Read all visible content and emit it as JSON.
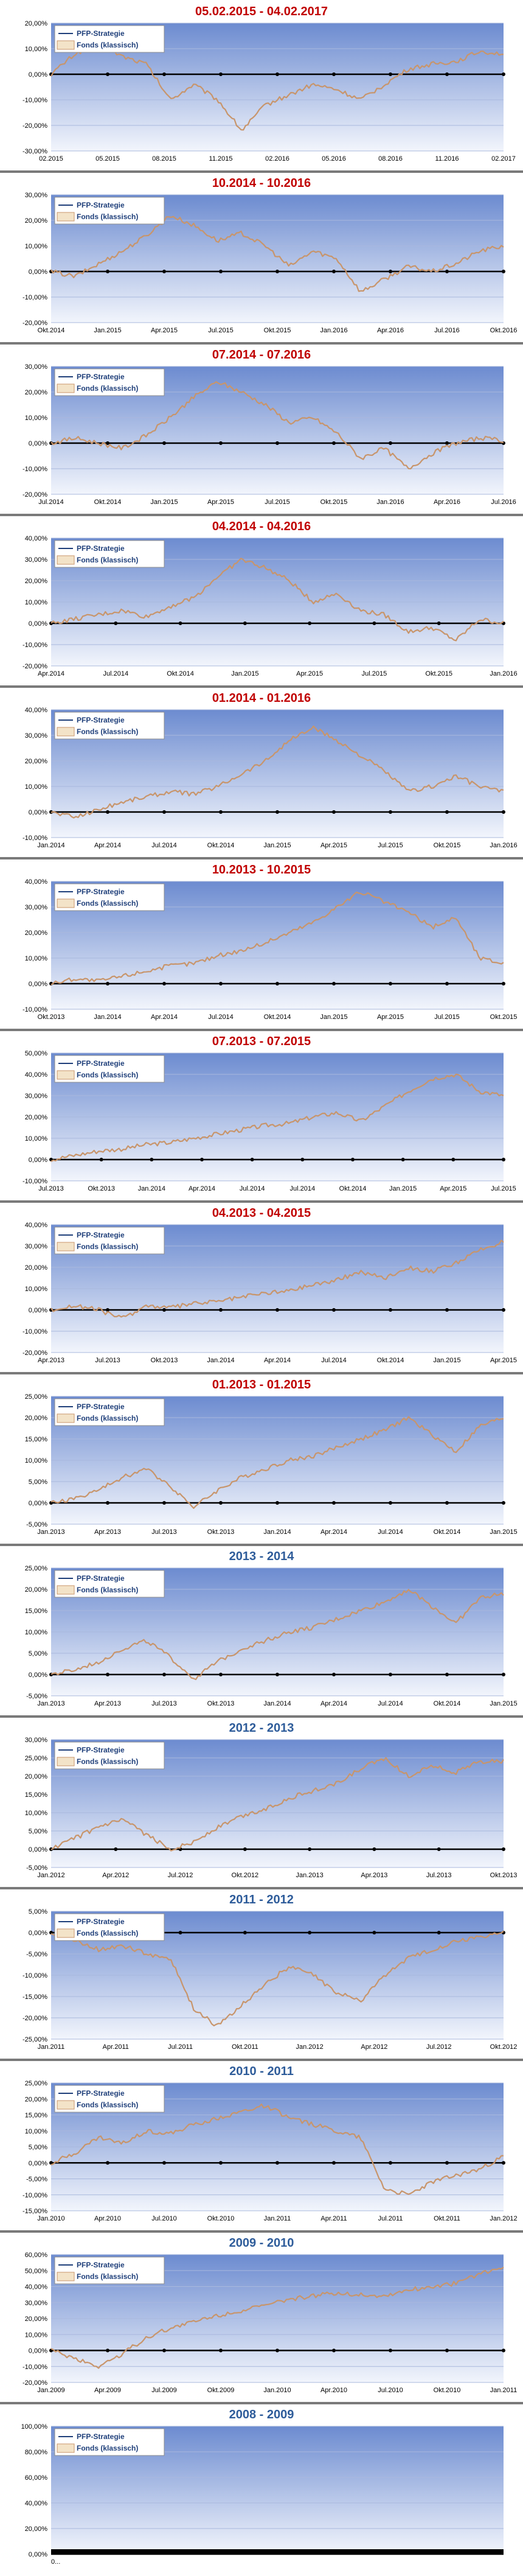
{
  "legend": {
    "strategy": "PFP-Strategie",
    "fund": "Fonds (klassisch)"
  },
  "colors": {
    "title_red": "#c00000",
    "title_blue": "#2e5c9a",
    "fund_line": "#c8956b",
    "strategy_line": "#1f3f7a",
    "plot_top": "#6c8bd0",
    "plot_bottom": "#f2f5fc"
  },
  "chart_data": [
    {
      "type": "line",
      "title": "05.02.2015 - 04.02.2017",
      "title_color": "red",
      "ylim": [
        -30,
        20
      ],
      "yticks": [
        "20,00%",
        "10,00%",
        "0,00%",
        "-10,00%",
        "-20,00%",
        "-30,00%"
      ],
      "xticks": [
        "02.2015",
        "05.2015",
        "08.2015",
        "11.2015",
        "02.2016",
        "05.2016",
        "08.2016",
        "11.2016",
        "02.2017"
      ],
      "series": [
        {
          "name": "PFP-Strategie",
          "values": [
            0,
            0,
            0,
            0,
            0,
            0,
            0,
            0,
            0
          ]
        },
        {
          "name": "Fonds (klassisch)",
          "values": [
            0,
            8,
            12,
            7,
            4,
            -10,
            -4,
            -10,
            -22,
            -12,
            -8,
            -4,
            -6,
            -10,
            -4,
            2,
            4,
            5,
            9,
            8
          ]
        }
      ]
    },
    {
      "type": "line",
      "title": "10.2014 - 10.2016",
      "title_color": "red",
      "ylim": [
        -20,
        30
      ],
      "yticks": [
        "30,00%",
        "20,00%",
        "10,00%",
        "0,00%",
        "-10,00%",
        "-20,00%"
      ],
      "xticks": [
        "Okt.2014",
        "Jan.2015",
        "Apr.2015",
        "Jul.2015",
        "Okt.2015",
        "Jan.2016",
        "Apr.2016",
        "Jul.2016",
        "Okt.2016"
      ],
      "series": [
        {
          "name": "PFP-Strategie",
          "values": [
            0,
            0,
            0,
            0,
            0,
            0,
            0,
            0,
            0
          ]
        },
        {
          "name": "Fonds (klassisch)",
          "values": [
            0,
            -2,
            3,
            8,
            14,
            22,
            18,
            12,
            15,
            10,
            2,
            8,
            5,
            -8,
            -3,
            2,
            0,
            3,
            8,
            10
          ]
        }
      ]
    },
    {
      "type": "line",
      "title": "07.2014 - 07.2016",
      "title_color": "red",
      "ylim": [
        -20,
        30
      ],
      "yticks": [
        "30,00%",
        "20,00%",
        "10,00%",
        "0,00%",
        "-10,00%",
        "-20,00%"
      ],
      "xticks": [
        "Jul.2014",
        "Okt.2014",
        "Jan.2015",
        "Apr.2015",
        "Jul.2015",
        "Okt.2015",
        "Jan.2016",
        "Apr.2016",
        "Jul.2016"
      ],
      "series": [
        {
          "name": "PFP-Strategie",
          "values": [
            0,
            0,
            0,
            0,
            0,
            0,
            0,
            0,
            0
          ]
        },
        {
          "name": "Fonds (klassisch)",
          "values": [
            0,
            2,
            0,
            -2,
            3,
            10,
            18,
            24,
            20,
            15,
            8,
            10,
            4,
            -6,
            -2,
            -10,
            -4,
            0,
            2,
            1
          ]
        }
      ]
    },
    {
      "type": "line",
      "title": "04.2014 - 04.2016",
      "title_color": "red",
      "ylim": [
        -20,
        40
      ],
      "yticks": [
        "40,00%",
        "30,00%",
        "20,00%",
        "10,00%",
        "0,00%",
        "-10,00%",
        "-20,00%"
      ],
      "xticks": [
        "Apr.2014",
        "Jul.2014",
        "Okt.2014",
        "Jan.2015",
        "Apr.2015",
        "Jul.2015",
        "Okt.2015",
        "Jan.2016"
      ],
      "series": [
        {
          "name": "PFP-Strategie",
          "values": [
            0,
            0,
            0,
            0,
            0,
            0,
            0,
            0
          ]
        },
        {
          "name": "Fonds (klassisch)",
          "values": [
            0,
            2,
            4,
            6,
            3,
            8,
            12,
            22,
            30,
            26,
            20,
            10,
            14,
            6,
            4,
            -4,
            -2,
            -8,
            2,
            0
          ]
        }
      ]
    },
    {
      "type": "line",
      "title": "01.2014 - 01.2016",
      "title_color": "red",
      "ylim": [
        -10,
        40
      ],
      "yticks": [
        "40,00%",
        "30,00%",
        "20,00%",
        "10,00%",
        "0,00%",
        "-10,00%"
      ],
      "xticks": [
        "Jan.2014",
        "Apr.2014",
        "Jul.2014",
        "Okt.2014",
        "Jan.2015",
        "Apr.2015",
        "Jul.2015",
        "Okt.2015",
        "Jan.2016"
      ],
      "series": [
        {
          "name": "PFP-Strategie",
          "values": [
            0,
            0,
            0,
            0,
            0,
            0,
            0,
            0,
            0
          ]
        },
        {
          "name": "Fonds (klassisch)",
          "values": [
            0,
            -2,
            1,
            4,
            6,
            8,
            7,
            10,
            15,
            20,
            28,
            33,
            28,
            22,
            16,
            8,
            10,
            14,
            10,
            8
          ]
        }
      ]
    },
    {
      "type": "line",
      "title": "10.2013 - 10.2015",
      "title_color": "red",
      "ylim": [
        -10,
        40
      ],
      "yticks": [
        "40,00%",
        "30,00%",
        "20,00%",
        "10,00%",
        "0,00%",
        "-10,00%"
      ],
      "xticks": [
        "Okt.2013",
        "Jan.2014",
        "Apr.2014",
        "Jul.2014",
        "Okt.2014",
        "Jan.2015",
        "Apr.2015",
        "Jul.2015",
        "Okt.2015"
      ],
      "series": [
        {
          "name": "PFP-Strategie",
          "values": [
            0,
            0,
            0,
            0,
            0,
            0,
            0,
            0,
            0
          ]
        },
        {
          "name": "Fonds (klassisch)",
          "values": [
            0,
            2,
            1,
            3,
            5,
            7,
            8,
            11,
            13,
            16,
            20,
            24,
            30,
            36,
            32,
            28,
            22,
            26,
            10,
            8
          ]
        }
      ]
    },
    {
      "type": "line",
      "title": "07.2013 - 07.2015",
      "title_color": "red",
      "ylim": [
        -10,
        50
      ],
      "yticks": [
        "50,00%",
        "40,00%",
        "30,00%",
        "20,00%",
        "10,00%",
        "0,00%",
        "-10,00%"
      ],
      "xticks": [
        "Jul.2013",
        "Okt.2013",
        "Jan.2014",
        "Apr.2014",
        "Jul.2014",
        "Jul.2014",
        "Okt.2014",
        "Jan.2015",
        "Apr.2015",
        "Jul.2015"
      ],
      "series": [
        {
          "name": "PFP-Strategie",
          "values": [
            0,
            0,
            0,
            0,
            0,
            0,
            0,
            0,
            0,
            0
          ]
        },
        {
          "name": "Fonds (klassisch)",
          "values": [
            0,
            2,
            4,
            5,
            7,
            8,
            10,
            12,
            14,
            16,
            17,
            20,
            22,
            18,
            25,
            32,
            38,
            40,
            32,
            30
          ]
        }
      ]
    },
    {
      "type": "line",
      "title": "04.2013 - 04.2015",
      "title_color": "red",
      "ylim": [
        -20,
        40
      ],
      "yticks": [
        "40,00%",
        "30,00%",
        "20,00%",
        "10,00%",
        "0,00%",
        "-10,00%",
        "-20,00%"
      ],
      "xticks": [
        "Apr.2013",
        "Jul.2013",
        "Okt.2013",
        "Jan.2014",
        "Apr.2014",
        "Jul.2014",
        "Okt.2014",
        "Jan.2015",
        "Apr.2015"
      ],
      "series": [
        {
          "name": "PFP-Strategie",
          "values": [
            0,
            0,
            0,
            0,
            0,
            0,
            0,
            0,
            0
          ]
        },
        {
          "name": "Fonds (klassisch)",
          "values": [
            0,
            2,
            0,
            -4,
            2,
            1,
            3,
            4,
            6,
            8,
            9,
            12,
            14,
            18,
            15,
            20,
            18,
            22,
            28,
            32
          ]
        }
      ]
    },
    {
      "type": "line",
      "title": "01.2013 - 01.2015",
      "title_color": "red",
      "ylim": [
        -5,
        25
      ],
      "yticks": [
        "25,00%",
        "20,00%",
        "15,00%",
        "10,00%",
        "5,00%",
        "0,00%",
        "-5,00%"
      ],
      "xticks": [
        "Jan.2013",
        "Apr.2013",
        "Jul.2013",
        "Okt.2013",
        "Jan.2014",
        "Apr.2014",
        "Jul.2014",
        "Okt.2014",
        "Jan.2015"
      ],
      "series": [
        {
          "name": "PFP-Strategie",
          "values": [
            0,
            0,
            0,
            0,
            0,
            0,
            0,
            0,
            0
          ]
        },
        {
          "name": "Fonds (klassisch)",
          "values": [
            0,
            1,
            3,
            6,
            8,
            4,
            -1,
            3,
            6,
            8,
            10,
            11,
            13,
            15,
            17,
            20,
            16,
            12,
            18,
            20
          ]
        }
      ]
    },
    {
      "type": "line",
      "title": "2013 - 2014",
      "title_color": "blue",
      "ylim": [
        -5,
        25
      ],
      "yticks": [
        "25,00%",
        "20,00%",
        "15,00%",
        "10,00%",
        "5,00%",
        "0,00%",
        "-5,00%"
      ],
      "xticks": [
        "Jan.2013",
        "Apr.2013",
        "Jul.2013",
        "Okt.2013",
        "Jan.2014",
        "Apr.2014",
        "Jul.2014",
        "Okt.2014",
        "Jan.2015"
      ],
      "series": [
        {
          "name": "PFP-Strategie",
          "values": [
            0,
            0,
            0,
            0,
            0,
            0,
            0,
            0,
            0
          ]
        },
        {
          "name": "Fonds (klassisch)",
          "values": [
            0,
            1,
            3,
            6,
            8,
            4,
            -1,
            3,
            6,
            8,
            10,
            11,
            13,
            15,
            17,
            20,
            16,
            12,
            18,
            19
          ]
        }
      ]
    },
    {
      "type": "line",
      "title": "2012 - 2013",
      "title_color": "blue",
      "ylim": [
        -5,
        30
      ],
      "yticks": [
        "30,00%",
        "25,00%",
        "20,00%",
        "15,00%",
        "10,00%",
        "5,00%",
        "0,00%",
        "-5,00%"
      ],
      "xticks": [
        "Jan.2012",
        "Apr.2012",
        "Jul.2012",
        "Okt.2012",
        "Jan.2013",
        "Apr.2013",
        "Jul.2013",
        "Okt.2013"
      ],
      "series": [
        {
          "name": "PFP-Strategie",
          "values": [
            0,
            0,
            0,
            0,
            0,
            0,
            0,
            0
          ]
        },
        {
          "name": "Fonds (klassisch)",
          "values": [
            0,
            3,
            6,
            8,
            4,
            0,
            2,
            6,
            9,
            11,
            14,
            16,
            18,
            22,
            25,
            20,
            23,
            21,
            24,
            24
          ]
        }
      ]
    },
    {
      "type": "line",
      "title": "2011 - 2012",
      "title_color": "blue",
      "ylim": [
        -25,
        5
      ],
      "yticks": [
        "5,00%",
        "0,00%",
        "-5,00%",
        "-10,00%",
        "-15,00%",
        "-20,00%",
        "-25,00%"
      ],
      "xticks": [
        "Jan.2011",
        "Apr.2011",
        "Jul.2011",
        "Okt.2011",
        "Jan.2012",
        "Apr.2012",
        "Jul.2012",
        "Okt.2012"
      ],
      "series": [
        {
          "name": "PFP-Strategie",
          "values": [
            0,
            0,
            0,
            0,
            0,
            0,
            0,
            0
          ]
        },
        {
          "name": "Fonds (klassisch)",
          "values": [
            0,
            -2,
            -4,
            -3,
            -5,
            -6,
            -18,
            -22,
            -17,
            -12,
            -8,
            -10,
            -14,
            -16,
            -10,
            -6,
            -4,
            -2,
            -1,
            0
          ]
        }
      ]
    },
    {
      "type": "line",
      "title": "2010 - 2011",
      "title_color": "blue",
      "ylim": [
        -15,
        25
      ],
      "yticks": [
        "25,00%",
        "20,00%",
        "15,00%",
        "10,00%",
        "5,00%",
        "0,00%",
        "-5,00%",
        "-10,00%",
        "-15,00%"
      ],
      "xticks": [
        "Jan.2010",
        "Apr.2010",
        "Jul.2010",
        "Okt.2010",
        "Jan.2011",
        "Apr.2011",
        "Jul.2011",
        "Okt.2011",
        "Jan.2012"
      ],
      "series": [
        {
          "name": "PFP-Strategie",
          "values": [
            0,
            0,
            0,
            0,
            0,
            0,
            0,
            0,
            0
          ]
        },
        {
          "name": "Fonds (klassisch)",
          "values": [
            0,
            3,
            8,
            6,
            10,
            9,
            12,
            14,
            16,
            18,
            14,
            12,
            10,
            8,
            -8,
            -10,
            -6,
            -4,
            -2,
            2
          ]
        }
      ]
    },
    {
      "type": "line",
      "title": "2009 - 2010",
      "title_color": "blue",
      "ylim": [
        -20,
        60
      ],
      "yticks": [
        "60,00%",
        "50,00%",
        "40,00%",
        "30,00%",
        "20,00%",
        "10,00%",
        "0,00%",
        "-10,00%",
        "-20,00%"
      ],
      "xticks": [
        "Jan.2009",
        "Apr.2009",
        "Jul.2009",
        "Okt.2009",
        "Jan.2010",
        "Apr.2010",
        "Jul.2010",
        "Okt.2010",
        "Jan.2011"
      ],
      "series": [
        {
          "name": "PFP-Strategie",
          "values": [
            0,
            0,
            0,
            0,
            0,
            0,
            0,
            0,
            0
          ]
        },
        {
          "name": "Fonds (klassisch)",
          "values": [
            0,
            -5,
            -10,
            -2,
            8,
            14,
            18,
            22,
            25,
            28,
            32,
            34,
            36,
            35,
            34,
            38,
            40,
            42,
            48,
            52
          ]
        }
      ]
    },
    {
      "type": "line",
      "title": "2008 - 2009",
      "title_color": "blue",
      "ylim": [
        0,
        100
      ],
      "yticks": [
        "100,00%",
        "80,00%",
        "60,00%",
        "40,00%",
        "20,00%",
        "0,00%"
      ],
      "xticks": [
        "0..."
      ],
      "series": [
        {
          "name": "PFP-Strategie",
          "values": []
        },
        {
          "name": "Fonds (klassisch)",
          "values": []
        }
      ]
    }
  ]
}
